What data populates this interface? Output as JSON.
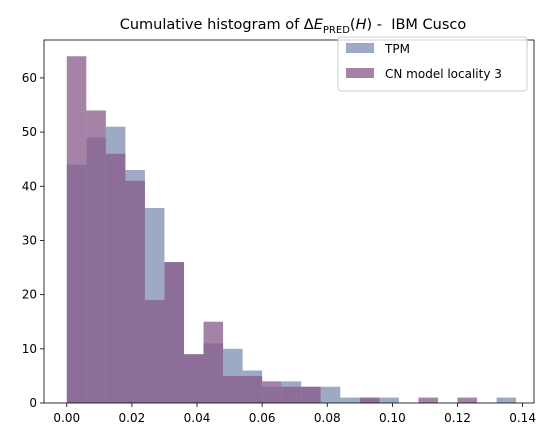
{
  "chart_data": {
    "type": "bar",
    "title_parts": {
      "prefix": "Cumulative histogram of ",
      "delta": "Δ",
      "symbol": "E",
      "subscript": "PRED",
      "open": "(",
      "arg": "H",
      "close": ")",
      "suffix": " -  IBM Cusco"
    },
    "xlim": [
      -0.007,
      0.1435
    ],
    "ylim": [
      0,
      67
    ],
    "xticks": [
      0.0,
      0.02,
      0.04,
      0.06,
      0.08,
      0.1,
      0.12,
      0.14
    ],
    "xtick_labels": [
      "0.00",
      "0.02",
      "0.04",
      "0.06",
      "0.08",
      "0.10",
      "0.12",
      "0.14"
    ],
    "yticks": [
      0,
      10,
      20,
      30,
      40,
      50,
      60
    ],
    "ytick_labels": [
      "0",
      "10",
      "20",
      "30",
      "40",
      "50",
      "60"
    ],
    "legend_position": "top-right",
    "series": [
      {
        "name": "TPM",
        "color": "#7e8db0",
        "opacity": 0.75,
        "bins": [
          {
            "x0": 0.0,
            "x1": 0.006,
            "count": 44
          },
          {
            "x0": 0.006,
            "x1": 0.012,
            "count": 49
          },
          {
            "x0": 0.012,
            "x1": 0.018,
            "count": 51
          },
          {
            "x0": 0.018,
            "x1": 0.024,
            "count": 43
          },
          {
            "x0": 0.024,
            "x1": 0.03,
            "count": 36
          },
          {
            "x0": 0.03,
            "x1": 0.036,
            "count": 26
          },
          {
            "x0": 0.036,
            "x1": 0.042,
            "count": 9
          },
          {
            "x0": 0.042,
            "x1": 0.048,
            "count": 11
          },
          {
            "x0": 0.048,
            "x1": 0.054,
            "count": 10
          },
          {
            "x0": 0.054,
            "x1": 0.06,
            "count": 6
          },
          {
            "x0": 0.06,
            "x1": 0.066,
            "count": 3
          },
          {
            "x0": 0.066,
            "x1": 0.072,
            "count": 4
          },
          {
            "x0": 0.072,
            "x1": 0.078,
            "count": 3
          },
          {
            "x0": 0.078,
            "x1": 0.084,
            "count": 3
          },
          {
            "x0": 0.084,
            "x1": 0.09,
            "count": 1
          },
          {
            "x0": 0.09,
            "x1": 0.096,
            "count": 1
          },
          {
            "x0": 0.096,
            "x1": 0.102,
            "count": 1
          },
          {
            "x0": 0.132,
            "x1": 0.138,
            "count": 1
          }
        ]
      },
      {
        "name": "CN model locality 3",
        "color": "#855a8a",
        "opacity": 0.75,
        "bins": [
          {
            "x0": 0.0,
            "x1": 0.006,
            "count": 64
          },
          {
            "x0": 0.006,
            "x1": 0.012,
            "count": 54
          },
          {
            "x0": 0.012,
            "x1": 0.018,
            "count": 46
          },
          {
            "x0": 0.018,
            "x1": 0.024,
            "count": 41
          },
          {
            "x0": 0.024,
            "x1": 0.03,
            "count": 19
          },
          {
            "x0": 0.03,
            "x1": 0.036,
            "count": 26
          },
          {
            "x0": 0.036,
            "x1": 0.042,
            "count": 9
          },
          {
            "x0": 0.042,
            "x1": 0.048,
            "count": 15
          },
          {
            "x0": 0.048,
            "x1": 0.054,
            "count": 5
          },
          {
            "x0": 0.054,
            "x1": 0.06,
            "count": 5
          },
          {
            "x0": 0.06,
            "x1": 0.066,
            "count": 4
          },
          {
            "x0": 0.066,
            "x1": 0.072,
            "count": 3
          },
          {
            "x0": 0.072,
            "x1": 0.078,
            "count": 3
          },
          {
            "x0": 0.09,
            "x1": 0.096,
            "count": 1
          },
          {
            "x0": 0.108,
            "x1": 0.114,
            "count": 1
          },
          {
            "x0": 0.12,
            "x1": 0.126,
            "count": 1
          }
        ]
      }
    ]
  }
}
